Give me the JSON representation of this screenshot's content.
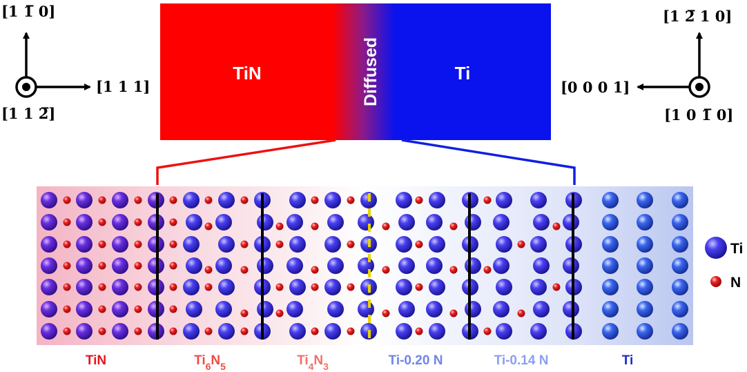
{
  "left_axes": {
    "up_label": "[1 1̅ 0]",
    "right_label": "[1 1 1]",
    "out_label": "[1 1 2̅]"
  },
  "right_axes": {
    "up_label": "[1 2̅ 1 0]",
    "left_label": "[0 0 0 1]",
    "out_label": "[1 0 1̅ 0]"
  },
  "composition_bar": {
    "left_label": "TiN",
    "middle_label": "Diffused",
    "right_label": "Ti",
    "colors": {
      "tin": "#ff0000",
      "ti": "#0a12ee",
      "diffused_mid": "#6a1fa0"
    }
  },
  "phases": [
    {
      "base": "TiN",
      "color": "#e8141e",
      "parts": [
        {
          "t": "TiN",
          "sub": false
        }
      ]
    },
    {
      "base": "Ti6N5",
      "color": "#ef4a44",
      "parts": [
        {
          "t": "Ti",
          "sub": false
        },
        {
          "t": "6",
          "sub": true
        },
        {
          "t": "N",
          "sub": false
        },
        {
          "t": "5",
          "sub": true
        }
      ]
    },
    {
      "base": "Ti4N3",
      "color": "#f0706a",
      "parts": [
        {
          "t": "Ti",
          "sub": false
        },
        {
          "t": "4",
          "sub": true
        },
        {
          "t": "N",
          "sub": false
        },
        {
          "t": "3",
          "sub": true
        }
      ]
    },
    {
      "base": "Ti-0.20 N",
      "color": "#6f86e8",
      "parts": [
        {
          "t": "Ti-0.20 N",
          "sub": false
        }
      ]
    },
    {
      "base": "Ti-0.14 N",
      "color": "#8a9ff0",
      "parts": [
        {
          "t": "Ti-0.14 N",
          "sub": false
        }
      ]
    },
    {
      "base": "Ti",
      "color": "#1a2cc8",
      "parts": [
        {
          "t": "Ti",
          "sub": false
        }
      ]
    }
  ],
  "legend": {
    "ti_label": "Ti",
    "n_label": "N",
    "ti_color": "#2a22cc",
    "n_color": "#d81010"
  }
}
